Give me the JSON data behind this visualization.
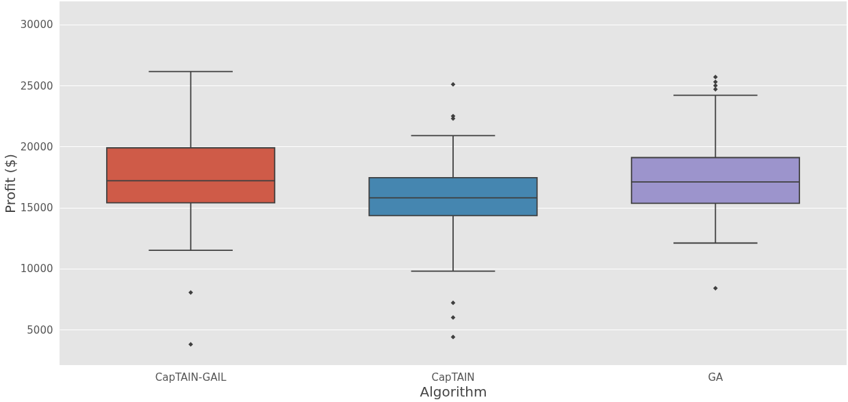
{
  "chart_data": {
    "type": "box",
    "xlabel": "Algorithm",
    "ylabel": "Profit ($)",
    "categories": [
      "CapTAIN-GAIL",
      "CapTAIN",
      "GA"
    ],
    "colors": [
      "#cf5b48",
      "#4586b0",
      "#9c94cc"
    ],
    "boxes": [
      {
        "low": 11500,
        "q1": 15400,
        "median": 17200,
        "q3": 19900,
        "high": 26150,
        "outliers": [
          8050,
          3800
        ]
      },
      {
        "low": 9800,
        "q1": 14350,
        "median": 15800,
        "q3": 17450,
        "high": 20900,
        "outliers": [
          25100,
          22500,
          22300,
          7200,
          6000,
          4400
        ]
      },
      {
        "low": 12100,
        "q1": 15350,
        "median": 17100,
        "q3": 19100,
        "high": 24200,
        "outliers": [
          25700,
          25300,
          25000,
          24700,
          8400
        ]
      }
    ],
    "ylim": [
      2100,
      31900
    ],
    "yticks": [
      5000,
      10000,
      15000,
      20000,
      25000,
      30000
    ],
    "grid": "y",
    "legend": false
  }
}
